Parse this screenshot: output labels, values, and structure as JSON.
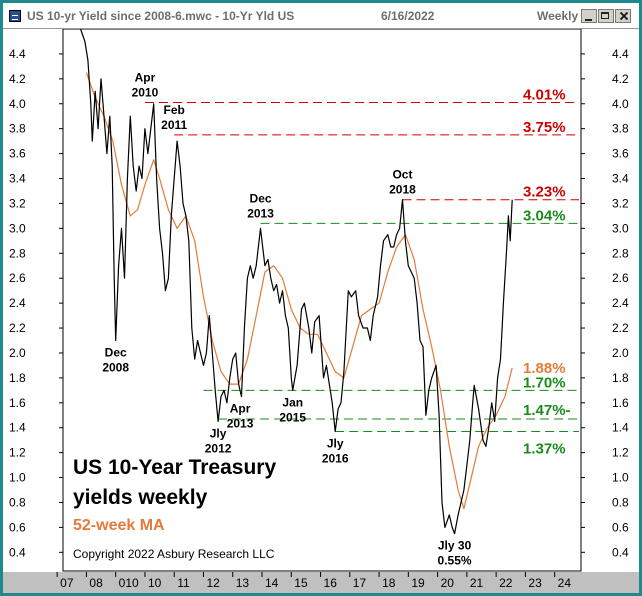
{
  "window": {
    "title": "US 10-yr Yield since 2008-6.mwc - 10-Yr Yld US",
    "date": "6/16/2022",
    "period": "Weekly"
  },
  "chart_data": {
    "type": "line",
    "title": "US 10-Year Treasury yields weekly",
    "title_lines": [
      "US 10-Year Treasury",
      "yields weekly"
    ],
    "ma_label": "52-week MA",
    "copyright": "Copyright 2022 Asbury Research LLC",
    "xlim": [
      2007.2,
      2024.9
    ],
    "ylim": [
      0.25,
      4.6
    ],
    "y_ticks": [
      0.4,
      0.6,
      0.8,
      1.0,
      1.2,
      1.4,
      1.6,
      1.8,
      2.0,
      2.2,
      2.4,
      2.6,
      2.8,
      3.0,
      3.2,
      3.4,
      3.6,
      3.8,
      4.0,
      4.2,
      4.4
    ],
    "y_tick_labels": [
      "0.4",
      "0.6",
      "0.8",
      "1.0",
      "1.2",
      "1.4",
      "1.6",
      "1.8",
      "2.0",
      "2.2",
      "2.4",
      "2.6",
      "2.8",
      "3.0",
      "3.2",
      "3.4",
      "3.6",
      "3.8",
      "4.0",
      "4.2",
      "4.4"
    ],
    "x_ticks": [
      {
        "x": 2007.5,
        "label": "07"
      },
      {
        "x": 2008.5,
        "label": "08"
      },
      {
        "x": 2009.5,
        "label": "010"
      },
      {
        "x": 2010.5,
        "label": "10"
      },
      {
        "x": 2011.5,
        "label": "11"
      },
      {
        "x": 2012.5,
        "label": "12"
      },
      {
        "x": 2013.5,
        "label": "13"
      },
      {
        "x": 2014.5,
        "label": "14"
      },
      {
        "x": 2015.5,
        "label": "15"
      },
      {
        "x": 2016.5,
        "label": "16"
      },
      {
        "x": 2017.5,
        "label": "17"
      },
      {
        "x": 2018.5,
        "label": "18"
      },
      {
        "x": 2019.5,
        "label": "19"
      },
      {
        "x": 2020.5,
        "label": "20"
      },
      {
        "x": 2021.5,
        "label": "21"
      },
      {
        "x": 2022.5,
        "label": "22"
      },
      {
        "x": 2023.5,
        "label": "23"
      },
      {
        "x": 2024.5,
        "label": "24"
      }
    ],
    "series": [
      {
        "name": "10-Yr Yld US",
        "color": "#000000",
        "points": [
          [
            2007.8,
            4.6
          ],
          [
            2007.95,
            4.5
          ],
          [
            2008.05,
            4.35
          ],
          [
            2008.15,
            4.0
          ],
          [
            2008.2,
            3.7
          ],
          [
            2008.3,
            4.1
          ],
          [
            2008.4,
            3.8
          ],
          [
            2008.5,
            4.2
          ],
          [
            2008.6,
            3.9
          ],
          [
            2008.7,
            3.6
          ],
          [
            2008.8,
            3.9
          ],
          [
            2008.88,
            3.5
          ],
          [
            2008.95,
            2.6
          ],
          [
            2009.0,
            2.1
          ],
          [
            2009.1,
            2.7
          ],
          [
            2009.2,
            3.0
          ],
          [
            2009.3,
            2.6
          ],
          [
            2009.4,
            3.4
          ],
          [
            2009.5,
            3.9
          ],
          [
            2009.6,
            3.5
          ],
          [
            2009.7,
            3.3
          ],
          [
            2009.8,
            3.5
          ],
          [
            2009.9,
            3.4
          ],
          [
            2010.0,
            3.8
          ],
          [
            2010.1,
            3.6
          ],
          [
            2010.2,
            3.8
          ],
          [
            2010.3,
            4.0
          ],
          [
            2010.4,
            3.4
          ],
          [
            2010.5,
            3.0
          ],
          [
            2010.6,
            2.8
          ],
          [
            2010.7,
            2.5
          ],
          [
            2010.8,
            2.6
          ],
          [
            2010.9,
            3.1
          ],
          [
            2011.0,
            3.4
          ],
          [
            2011.1,
            3.7
          ],
          [
            2011.2,
            3.5
          ],
          [
            2011.3,
            3.2
          ],
          [
            2011.4,
            3.1
          ],
          [
            2011.5,
            2.9
          ],
          [
            2011.6,
            2.2
          ],
          [
            2011.7,
            1.95
          ],
          [
            2011.8,
            2.1
          ],
          [
            2011.9,
            2.0
          ],
          [
            2012.0,
            1.9
          ],
          [
            2012.1,
            2.0
          ],
          [
            2012.2,
            2.3
          ],
          [
            2012.3,
            2.0
          ],
          [
            2012.4,
            1.7
          ],
          [
            2012.5,
            1.45
          ],
          [
            2012.6,
            1.65
          ],
          [
            2012.7,
            1.7
          ],
          [
            2012.8,
            1.6
          ],
          [
            2012.9,
            1.8
          ],
          [
            2013.0,
            1.95
          ],
          [
            2013.1,
            2.0
          ],
          [
            2013.2,
            1.75
          ],
          [
            2013.3,
            1.65
          ],
          [
            2013.4,
            2.2
          ],
          [
            2013.5,
            2.6
          ],
          [
            2013.6,
            2.7
          ],
          [
            2013.7,
            2.6
          ],
          [
            2013.8,
            2.7
          ],
          [
            2013.95,
            3.0
          ],
          [
            2014.1,
            2.7
          ],
          [
            2014.2,
            2.75
          ],
          [
            2014.3,
            2.6
          ],
          [
            2014.4,
            2.5
          ],
          [
            2014.5,
            2.55
          ],
          [
            2014.6,
            2.4
          ],
          [
            2014.7,
            2.5
          ],
          [
            2014.8,
            2.3
          ],
          [
            2014.9,
            2.2
          ],
          [
            2015.0,
            1.8
          ],
          [
            2015.05,
            1.7
          ],
          [
            2015.2,
            1.9
          ],
          [
            2015.35,
            2.35
          ],
          [
            2015.45,
            2.4
          ],
          [
            2015.6,
            2.2
          ],
          [
            2015.7,
            2.0
          ],
          [
            2015.8,
            2.25
          ],
          [
            2015.95,
            2.3
          ],
          [
            2016.1,
            1.8
          ],
          [
            2016.2,
            1.9
          ],
          [
            2016.3,
            1.75
          ],
          [
            2016.4,
            1.6
          ],
          [
            2016.5,
            1.37
          ],
          [
            2016.6,
            1.55
          ],
          [
            2016.7,
            1.6
          ],
          [
            2016.8,
            1.85
          ],
          [
            2016.95,
            2.5
          ],
          [
            2017.05,
            2.45
          ],
          [
            2017.2,
            2.5
          ],
          [
            2017.3,
            2.3
          ],
          [
            2017.45,
            2.2
          ],
          [
            2017.6,
            2.2
          ],
          [
            2017.7,
            2.1
          ],
          [
            2017.8,
            2.3
          ],
          [
            2017.95,
            2.45
          ],
          [
            2018.05,
            2.7
          ],
          [
            2018.15,
            2.9
          ],
          [
            2018.3,
            2.95
          ],
          [
            2018.4,
            2.85
          ],
          [
            2018.5,
            2.85
          ],
          [
            2018.6,
            2.95
          ],
          [
            2018.7,
            3.0
          ],
          [
            2018.8,
            3.23
          ],
          [
            2018.9,
            2.9
          ],
          [
            2019.0,
            2.7
          ],
          [
            2019.1,
            2.65
          ],
          [
            2019.2,
            2.6
          ],
          [
            2019.3,
            2.4
          ],
          [
            2019.4,
            2.1
          ],
          [
            2019.5,
            2.05
          ],
          [
            2019.6,
            1.5
          ],
          [
            2019.7,
            1.7
          ],
          [
            2019.8,
            1.8
          ],
          [
            2019.95,
            1.9
          ],
          [
            2020.05,
            1.5
          ],
          [
            2020.15,
            0.8
          ],
          [
            2020.25,
            0.6
          ],
          [
            2020.4,
            0.7
          ],
          [
            2020.5,
            0.6
          ],
          [
            2020.58,
            0.55
          ],
          [
            2020.7,
            0.7
          ],
          [
            2020.8,
            0.8
          ],
          [
            2020.9,
            0.9
          ],
          [
            2021.0,
            1.1
          ],
          [
            2021.1,
            1.3
          ],
          [
            2021.2,
            1.6
          ],
          [
            2021.25,
            1.74
          ],
          [
            2021.4,
            1.55
          ],
          [
            2021.55,
            1.3
          ],
          [
            2021.65,
            1.25
          ],
          [
            2021.75,
            1.4
          ],
          [
            2021.85,
            1.6
          ],
          [
            2021.95,
            1.45
          ],
          [
            2022.05,
            1.8
          ],
          [
            2022.15,
            1.95
          ],
          [
            2022.25,
            2.4
          ],
          [
            2022.35,
            2.8
          ],
          [
            2022.42,
            3.1
          ],
          [
            2022.48,
            2.9
          ],
          [
            2022.55,
            3.23
          ]
        ]
      },
      {
        "name": "52-week MA",
        "color": "#e57b3a",
        "points": [
          [
            2008.0,
            4.25
          ],
          [
            2008.3,
            4.05
          ],
          [
            2008.6,
            3.9
          ],
          [
            2008.9,
            3.7
          ],
          [
            2009.2,
            3.35
          ],
          [
            2009.5,
            3.1
          ],
          [
            2009.75,
            3.15
          ],
          [
            2010.0,
            3.35
          ],
          [
            2010.3,
            3.55
          ],
          [
            2010.5,
            3.4
          ],
          [
            2010.8,
            3.15
          ],
          [
            2011.1,
            3.0
          ],
          [
            2011.4,
            3.1
          ],
          [
            2011.7,
            2.9
          ],
          [
            2012.0,
            2.45
          ],
          [
            2012.3,
            2.1
          ],
          [
            2012.6,
            1.85
          ],
          [
            2012.9,
            1.75
          ],
          [
            2013.2,
            1.75
          ],
          [
            2013.5,
            1.95
          ],
          [
            2013.8,
            2.3
          ],
          [
            2014.1,
            2.65
          ],
          [
            2014.4,
            2.7
          ],
          [
            2014.7,
            2.6
          ],
          [
            2015.0,
            2.35
          ],
          [
            2015.3,
            2.2
          ],
          [
            2015.6,
            2.15
          ],
          [
            2015.9,
            2.15
          ],
          [
            2016.2,
            2.0
          ],
          [
            2016.5,
            1.85
          ],
          [
            2016.8,
            1.8
          ],
          [
            2017.1,
            2.05
          ],
          [
            2017.4,
            2.3
          ],
          [
            2017.7,
            2.35
          ],
          [
            2018.0,
            2.4
          ],
          [
            2018.3,
            2.65
          ],
          [
            2018.6,
            2.85
          ],
          [
            2018.9,
            2.95
          ],
          [
            2019.2,
            2.75
          ],
          [
            2019.5,
            2.35
          ],
          [
            2019.8,
            2.05
          ],
          [
            2020.1,
            1.7
          ],
          [
            2020.4,
            1.25
          ],
          [
            2020.7,
            0.9
          ],
          [
            2020.9,
            0.75
          ],
          [
            2021.1,
            0.95
          ],
          [
            2021.4,
            1.25
          ],
          [
            2021.7,
            1.4
          ],
          [
            2022.0,
            1.5
          ],
          [
            2022.3,
            1.65
          ],
          [
            2022.55,
            1.88
          ]
        ]
      }
    ],
    "levels": [
      {
        "value": 4.01,
        "label": "4.01%",
        "color": "#cc0000",
        "x_start": 2010.0
      },
      {
        "value": 3.75,
        "label": "3.75%",
        "color": "#cc0000",
        "x_start": 2011.0
      },
      {
        "value": 3.23,
        "label": "3.23%",
        "color": "#cc0000",
        "x_start": 2018.8
      },
      {
        "value": 3.04,
        "label": "3.04%",
        "color": "#1a8a1a",
        "x_start": 2013.95
      },
      {
        "value": 1.7,
        "label": "1.70%",
        "color": "#1a8a1a",
        "x_start": 2012.0
      },
      {
        "value": 1.47,
        "label": "1.47%-",
        "color": "#1a8a1a",
        "x_start": 2012.5
      },
      {
        "value": 1.37,
        "label": "1.37%",
        "color": "#1a8a1a",
        "x_start": 2016.5
      }
    ],
    "ma_value_label": {
      "value": 1.88,
      "label": "1.88%",
      "color": "#e57b3a"
    },
    "annotations": [
      {
        "x": 2009.0,
        "y": 2.1,
        "lines": [
          "Dec",
          "2008"
        ],
        "pos": "below"
      },
      {
        "x": 2010.0,
        "y": 4.01,
        "lines": [
          "Apr",
          "2010"
        ],
        "pos": "above"
      },
      {
        "x": 2011.0,
        "y": 3.75,
        "lines": [
          "Feb",
          "2011"
        ],
        "pos": "above"
      },
      {
        "x": 2012.5,
        "y": 1.45,
        "lines": [
          "Jly",
          "2012"
        ],
        "pos": "below"
      },
      {
        "x": 2013.25,
        "y": 1.65,
        "lines": [
          "Apr",
          "2013"
        ],
        "pos": "below"
      },
      {
        "x": 2013.95,
        "y": 3.04,
        "lines": [
          "Dec",
          "2013"
        ],
        "pos": "above"
      },
      {
        "x": 2015.05,
        "y": 1.7,
        "lines": [
          "Jan",
          "2015"
        ],
        "pos": "below"
      },
      {
        "x": 2016.5,
        "y": 1.37,
        "lines": [
          "Jly",
          "2016"
        ],
        "pos": "below"
      },
      {
        "x": 2018.8,
        "y": 3.23,
        "lines": [
          "Oct",
          "2018"
        ],
        "pos": "above"
      },
      {
        "x": 2020.58,
        "y": 0.55,
        "lines": [
          "Jly 30",
          "0.55%"
        ],
        "pos": "below"
      }
    ],
    "grid": false,
    "legend": "none"
  }
}
